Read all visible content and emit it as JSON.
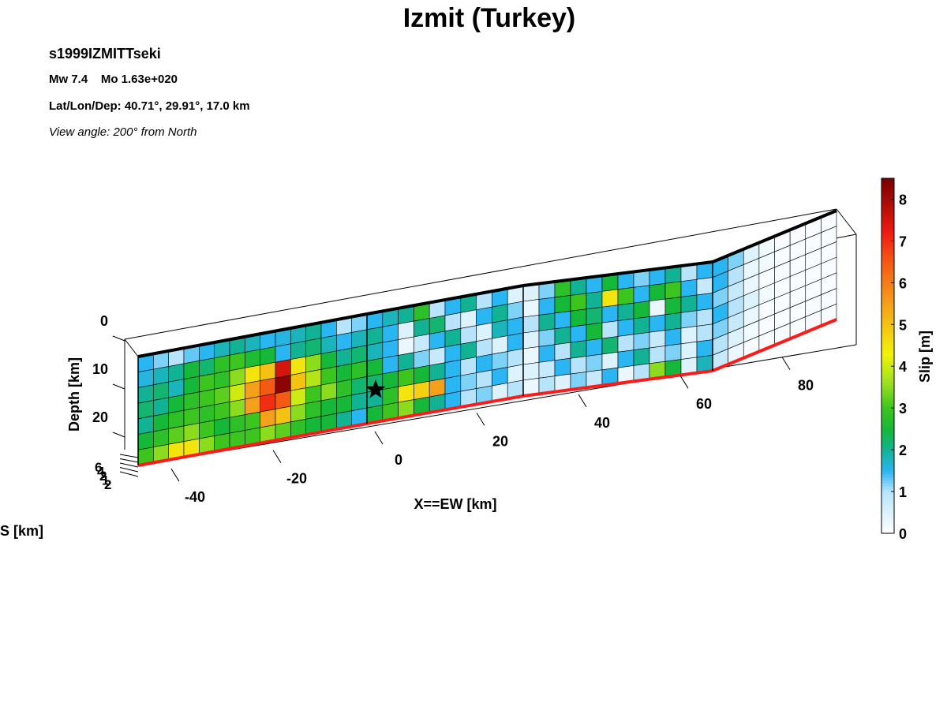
{
  "chart_data": {
    "type": "fault_slip",
    "title": "Izmit (Turkey)",
    "event": "s1999IZMITTseki",
    "magnitude": "Mw 7.4    Mo 1.63e+020",
    "location": "Lat/Lon/Dep: 40.71°, 29.91°, 17.0 km",
    "view": "View angle: 200° from North",
    "xlabel": "X==EW [km]",
    "xticks": [
      -40,
      -20,
      0,
      20,
      40,
      60,
      80
    ],
    "depth_label": "Depth [km]",
    "depth_ticks": [
      0,
      10,
      20
    ],
    "ns_label": "S [km]",
    "ns_tick_labels": [
      "6",
      "4",
      "2",
      "1",
      "2"
    ],
    "colorbar": {
      "label": "Slip [m]",
      "lim": [
        0,
        8.5
      ],
      "ticks": [
        0,
        1,
        2,
        3,
        4,
        5,
        6,
        7,
        8
      ]
    },
    "colorscale": [
      [
        0,
        "#ffffff"
      ],
      [
        1,
        "#b8e4fb"
      ],
      [
        1.5,
        "#2ab6f2"
      ],
      [
        2,
        "#11b394"
      ],
      [
        2.5,
        "#16b83a"
      ],
      [
        3,
        "#3cc51e"
      ],
      [
        3.6,
        "#9be01e"
      ],
      [
        4.3,
        "#f2f20a"
      ],
      [
        5.5,
        "#f5a01a"
      ],
      [
        6.5,
        "#f55a14"
      ],
      [
        7.2,
        "#ee1c12"
      ],
      [
        8.5,
        "#7a0000"
      ]
    ],
    "segments": [
      {
        "slip": [
          [
            1.5,
            1.2,
            1.0,
            1.3,
            1.5,
            1.8,
            2.0,
            1.8,
            1.5,
            1.6,
            1.8,
            2.0,
            1.5,
            1.0,
            1.2
          ],
          [
            1.6,
            1.8,
            2.0,
            2.5,
            2.2,
            2.8,
            3.0,
            2.6,
            2.5,
            1.5,
            2.0,
            2.2,
            1.8,
            1.5,
            1.8
          ],
          [
            2.0,
            2.2,
            1.8,
            2.5,
            3.0,
            2.8,
            3.5,
            4.5,
            5.0,
            7.5,
            4.5,
            3.5,
            2.5,
            2.0,
            2.2
          ],
          [
            2.2,
            2.0,
            2.5,
            2.8,
            3.0,
            3.2,
            4.0,
            5.5,
            6.5,
            8.3,
            5.0,
            3.8,
            3.0,
            2.5,
            2.8
          ],
          [
            2.0,
            2.5,
            2.8,
            3.0,
            2.8,
            3.0,
            3.5,
            5.5,
            7.0,
            6.5,
            4.0,
            3.0,
            3.5,
            2.8,
            2.2
          ],
          [
            2.5,
            2.8,
            3.2,
            3.5,
            3.0,
            2.5,
            2.8,
            3.0,
            5.5,
            5.0,
            3.5,
            2.8,
            2.5,
            2.5,
            2.0
          ],
          [
            3.0,
            3.5,
            4.5,
            4.5,
            3.5,
            3.0,
            3.0,
            3.0,
            3.5,
            3.2,
            2.8,
            2.5,
            2.5,
            2.0,
            1.5
          ]
        ]
      },
      {
        "slip": [
          [
            1.5,
            1.8,
            2.0,
            2.8,
            1.0,
            1.5,
            2.0,
            1.0,
            1.5,
            0.5
          ],
          [
            2.0,
            1.5,
            0.5,
            2.0,
            2.2,
            1.0,
            0.5,
            1.5,
            2.0,
            1.2
          ],
          [
            1.8,
            1.5,
            0.3,
            0.8,
            1.5,
            2.0,
            1.0,
            0.5,
            1.8,
            1.5
          ],
          [
            2.5,
            1.5,
            2.0,
            1.2,
            0.8,
            1.5,
            2.0,
            1.0,
            0.5,
            1.5
          ],
          [
            2.2,
            2.5,
            3.0,
            2.5,
            2.0,
            1.5,
            1.0,
            1.5,
            1.2,
            1.0
          ],
          [
            2.0,
            2.8,
            4.5,
            4.8,
            5.5,
            1.5,
            1.2,
            1.0,
            1.5,
            0.5
          ],
          [
            2.5,
            3.0,
            3.5,
            2.5,
            2.0,
            1.5,
            1.0,
            1.2,
            0.5,
            1.0
          ]
        ]
      },
      {
        "slip": [
          [
            0.5,
            1.2,
            2.8,
            2.0,
            1.5,
            2.5,
            1.5,
            1.2,
            1.5,
            2.0,
            1.0,
            1.5
          ],
          [
            0.3,
            1.5,
            2.5,
            3.0,
            2.0,
            4.5,
            3.0,
            1.5,
            2.5,
            3.0,
            1.5,
            0.8
          ],
          [
            1.0,
            2.0,
            1.5,
            2.5,
            2.2,
            1.5,
            2.0,
            2.5,
            0.3,
            2.5,
            2.0,
            1.5
          ],
          [
            0.5,
            1.2,
            2.0,
            1.5,
            2.5,
            1.0,
            1.5,
            2.0,
            1.5,
            2.0,
            1.2,
            1.0
          ],
          [
            0.3,
            1.5,
            1.0,
            2.0,
            1.5,
            2.2,
            1.0,
            1.2,
            0.8,
            1.5,
            0.5,
            1.0
          ],
          [
            0.5,
            0.8,
            1.5,
            1.0,
            1.2,
            0.5,
            1.5,
            2.0,
            1.0,
            1.2,
            0.5,
            1.5
          ],
          [
            0.3,
            1.0,
            0.5,
            1.2,
            0.8,
            1.5,
            0.3,
            1.0,
            3.5,
            2.5,
            0.5,
            1.8
          ]
        ]
      },
      {
        "slip": [
          [
            1.5,
            1.2,
            0.5,
            0.2,
            0.1,
            0.1,
            0.1,
            0.1
          ],
          [
            1.5,
            1.0,
            0.3,
            0.2,
            0.1,
            0.1,
            0.1,
            0.1
          ],
          [
            1.2,
            0.8,
            0.3,
            0.1,
            0.1,
            0.1,
            0.1,
            0.1
          ],
          [
            1.5,
            1.0,
            0.5,
            0.2,
            0.1,
            0.1,
            0.1,
            0.1
          ],
          [
            1.2,
            0.8,
            0.3,
            0.1,
            0.1,
            0.1,
            0.1,
            0.1
          ],
          [
            1.0,
            0.5,
            0.2,
            0.1,
            0.1,
            0.1,
            0.1,
            0.1
          ],
          [
            0.8,
            0.3,
            0.1,
            0.1,
            0.1,
            0.1,
            0.1,
            0.1
          ]
        ]
      }
    ]
  }
}
